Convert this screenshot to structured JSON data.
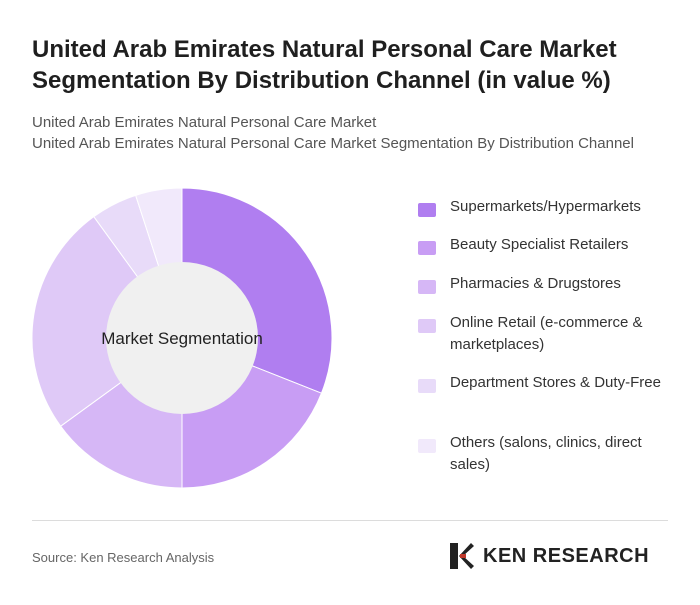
{
  "header": {
    "title": "United Arab Emirates Natural Personal Care Market Segmentation By Distribution Channel (in value %)",
    "subtitle_1": "United Arab Emirates Natural Personal Care Market",
    "subtitle_2": "United Arab Emirates Natural Personal Care Market Segmentation By Distribution Channel"
  },
  "chart_data": {
    "type": "pie",
    "variant": "donut",
    "center_label": "Market Segmentation",
    "legend_position": "right",
    "categories": [
      "Supermarkets/Hypermarkets",
      "Beauty Specialist Retailers",
      "Pharmacies & Drugstores",
      "Online Retail (e-commerce & marketplaces)",
      "Department Stores & Duty-Free",
      "Others (salons, clinics, direct sales)"
    ],
    "values": [
      31,
      19,
      15,
      25,
      5,
      5
    ],
    "colors": [
      "#b07ef0",
      "#c89df4",
      "#d6b7f6",
      "#dfc9f7",
      "#e8dbf9",
      "#f1e9fb"
    ]
  },
  "legend": {
    "items": [
      "Supermarkets/Hypermarkets",
      "Beauty Specialist Retailers",
      "Pharmacies & Drugstores",
      "Online Retail (e-commerce & marketplaces)",
      "Department Stores & Duty-Free",
      "Others (salons, clinics, direct sales)"
    ]
  },
  "footer": {
    "source": "Source: Ken Research Analysis",
    "logo_text": "KEN RESEARCH"
  }
}
